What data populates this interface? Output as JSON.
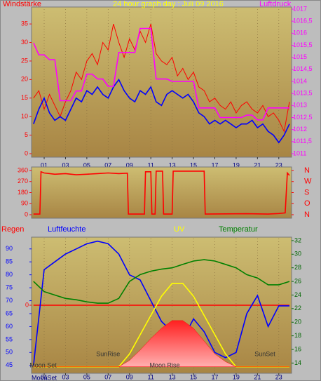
{
  "chart_data": [
    {
      "type": "line",
      "title": "24 hour graph day : Juli 09 2016",
      "title_color": "#ffff00",
      "ylabel": "Windstärke",
      "ycolor": "#ff0000",
      "y2label": "Luftdruck",
      "y2color": "#ff00ff",
      "grid": true,
      "x": [
        0,
        0.5,
        1,
        1.5,
        2,
        2.5,
        3,
        3.5,
        4,
        4.5,
        5,
        5.5,
        6,
        6.5,
        7,
        7.5,
        8,
        8.5,
        9,
        9.5,
        10,
        10.5,
        11,
        11.5,
        12,
        12.5,
        13,
        13.5,
        14,
        14.5,
        15,
        15.5,
        16,
        16.5,
        17,
        17.5,
        18,
        18.5,
        19,
        19.5,
        20,
        20.5,
        21,
        21.5,
        22,
        22.5,
        23,
        23.5,
        24
      ],
      "xlim": [
        0,
        24
      ],
      "xticks": [
        {
          "value": 1,
          "label": "01"
        },
        {
          "value": 3,
          "label": "03"
        },
        {
          "value": 5,
          "label": "05"
        },
        {
          "value": 7,
          "label": "07"
        },
        {
          "value": 9,
          "label": "09"
        },
        {
          "value": 11,
          "label": "11"
        },
        {
          "value": 13,
          "label": "13"
        },
        {
          "value": 15,
          "label": "15"
        },
        {
          "value": 17,
          "label": "17"
        },
        {
          "value": 19,
          "label": "19"
        },
        {
          "value": 21,
          "label": "21"
        },
        {
          "value": 23,
          "label": "23"
        }
      ],
      "ylim": [
        0,
        39
      ],
      "yticks": [
        0,
        5,
        10,
        15,
        20,
        25,
        30,
        35
      ],
      "y2lim": [
        1011,
        1017
      ],
      "y2ticks": [
        1011,
        {
          "value": 1011.5,
          "label": "1011,5"
        },
        1012,
        {
          "value": 1012.5,
          "label": "1012,5"
        },
        1013,
        {
          "value": 1013.5,
          "label": "1013,5"
        },
        1014,
        {
          "value": 1014.5,
          "label": "1014,5"
        },
        1015,
        {
          "value": 1015.5,
          "label": "1015,5"
        },
        1016,
        {
          "value": 1016.5,
          "label": "1016,5"
        },
        1017
      ],
      "series": [
        {
          "color": "#ff0000",
          "axis": "y",
          "values": [
            15,
            17,
            12,
            16,
            13,
            10,
            14,
            17,
            22,
            20,
            25,
            27,
            24,
            30,
            28,
            35,
            30,
            26,
            31,
            28,
            33,
            30,
            35,
            27,
            25,
            24,
            26,
            21,
            23,
            20,
            22,
            18,
            17,
            14,
            15,
            13,
            12,
            14,
            11,
            13,
            14,
            12,
            11,
            13,
            10,
            11,
            9,
            6,
            14
          ]
        },
        {
          "color": "#0000ff",
          "axis": "y",
          "values": [
            8,
            12,
            15,
            11,
            9,
            10,
            9,
            12,
            15,
            14,
            17,
            16,
            18,
            16,
            15,
            18,
            20,
            17,
            15,
            14,
            17,
            16,
            18,
            14,
            13,
            16,
            17,
            16,
            15,
            16,
            14,
            11,
            10,
            8,
            9,
            8,
            9,
            8,
            7,
            8,
            8,
            9,
            7,
            8,
            6,
            5,
            3,
            5,
            8
          ]
        },
        {
          "color": "#ff00ff",
          "axis": "y2",
          "values": [
            1015.6,
            1015.1,
            1015.1,
            1014.9,
            1014.9,
            1013.2,
            1013.2,
            1013.2,
            1013.6,
            1013.6,
            1014.3,
            1014.3,
            1014.1,
            1014.1,
            1013.8,
            1013.8,
            1015.2,
            1015.2,
            1015.2,
            1015.2,
            1016.2,
            1016.2,
            1016.2,
            1014.1,
            1014.1,
            1014.1,
            1014,
            1014,
            1014,
            1014,
            1014,
            1012.9,
            1012.9,
            1012.9,
            1012.9,
            1012.5,
            1012.5,
            1012.5,
            1012.5,
            1012.5,
            1012.6,
            1012.6,
            1012.4,
            1012.4,
            1012.9,
            1012.9,
            1012.9,
            1012.9,
            1012.9
          ]
        }
      ]
    },
    {
      "type": "line",
      "ycolor": "#ff0000",
      "y2color": "#ff0000",
      "x": [
        0,
        0.6,
        0.7,
        1,
        2,
        3,
        4,
        5,
        6,
        7,
        8,
        8.8,
        8.9,
        10.4,
        10.5,
        11,
        11.1,
        11.4,
        11.5,
        12.1,
        12.2,
        13,
        13.1,
        16,
        16.1,
        20,
        22,
        23,
        23.6,
        23.8,
        24
      ],
      "xlim": [
        0,
        24
      ],
      "ylim": [
        0,
        360
      ],
      "yticks": [
        0,
        90,
        180,
        270,
        360
      ],
      "y2lim": [
        0,
        360
      ],
      "y2ticks": [
        {
          "value": 360,
          "label": "N"
        },
        {
          "value": 270,
          "label": "W"
        },
        {
          "value": 180,
          "label": "S"
        },
        {
          "value": 90,
          "label": "O"
        },
        {
          "value": 0,
          "label": "N"
        }
      ],
      "series": [
        {
          "color": "#ff0000",
          "axis": "y",
          "values": [
            5,
            5,
            350,
            340,
            330,
            335,
            325,
            330,
            335,
            340,
            335,
            338,
            5,
            5,
            350,
            350,
            5,
            5,
            355,
            355,
            5,
            5,
            355,
            355,
            5,
            8,
            5,
            10,
            15,
            340,
            320
          ]
        }
      ]
    },
    {
      "type": "line",
      "ycolor": "#0000ff",
      "y2color": "#006600",
      "y3color": "#ff0000",
      "grid": true,
      "x": [
        0,
        1,
        2,
        3,
        4,
        5,
        6,
        7,
        8,
        9,
        10,
        11,
        12,
        13,
        14,
        15,
        16,
        17,
        18,
        19,
        20,
        21,
        22,
        23,
        24
      ],
      "xlim": [
        0,
        24
      ],
      "xticks": [
        {
          "value": 1,
          "label": "01"
        },
        {
          "value": 3,
          "label": "03"
        },
        {
          "value": 5,
          "label": "05"
        },
        {
          "value": 7,
          "label": "07"
        },
        {
          "value": 9,
          "label": "09"
        },
        {
          "value": 11,
          "label": "11"
        },
        {
          "value": 13,
          "label": "13"
        },
        {
          "value": 15,
          "label": "15"
        },
        {
          "value": 17,
          "label": "17"
        },
        {
          "value": 19,
          "label": "19"
        },
        {
          "value": 21,
          "label": "21"
        },
        {
          "value": 23,
          "label": "23"
        }
      ],
      "ylim": [
        42.5,
        94
      ],
      "yticks": [
        45,
        50,
        55,
        60,
        65,
        70,
        75,
        80,
        85,
        90
      ],
      "y2lim": [
        12.7,
        32.3
      ],
      "y2ticks": [
        14,
        16,
        18,
        20,
        22,
        24,
        26,
        28,
        30,
        32
      ],
      "y3lim": [
        -1,
        1
      ],
      "y3ticks": [
        0
      ],
      "y4lim": [
        -0.4,
        10
      ],
      "series": [
        {
          "name": "Regen",
          "color": "#ff0000",
          "axis": "y3",
          "values": [
            0,
            0,
            0,
            0,
            0,
            0,
            0,
            0,
            0,
            0,
            0,
            0,
            0,
            0,
            0,
            0,
            0,
            0,
            0,
            0,
            0,
            0,
            0,
            0,
            0
          ]
        },
        {
          "name": "Luftfeuchte",
          "color": "#0000ff",
          "axis": "y",
          "values": [
            45,
            82,
            85,
            88,
            90,
            92,
            93,
            92,
            88,
            80,
            78,
            70,
            62,
            58,
            55,
            63,
            58,
            50,
            48,
            50,
            65,
            72,
            60,
            68,
            68
          ]
        },
        {
          "name": "UV",
          "color": "#ffff00",
          "axis": "y4",
          "values": [
            0,
            0,
            0,
            0,
            0,
            0,
            0,
            0,
            0,
            1,
            2.5,
            4,
            5.5,
            6.5,
            6.5,
            5.5,
            4,
            2.5,
            1,
            0,
            0,
            0,
            0,
            0,
            0
          ]
        },
        {
          "name": "Temperatur",
          "color": "#008000",
          "axis": "y2",
          "values": [
            26,
            24.5,
            24,
            23.5,
            23.3,
            23,
            22.8,
            22.8,
            23.5,
            26,
            27,
            27.5,
            27.8,
            28,
            28.5,
            29,
            29.2,
            29,
            28.5,
            28,
            27,
            26.5,
            25.5,
            25.5,
            26
          ]
        },
        {
          "color": "#ff0000",
          "axis": "y4",
          "kind": "area",
          "values": [
            0,
            0,
            0,
            0,
            0,
            0,
            0,
            0,
            0,
            0.5,
            1.3,
            2.2,
            3,
            3.6,
            3.6,
            3,
            2,
            1,
            0.4,
            0,
            0,
            0,
            0,
            0,
            0
          ]
        }
      ],
      "annotations": [
        {
          "text": "Moon Set",
          "x": 0.9
        },
        {
          "text": "SunRise",
          "x": 7
        },
        {
          "text": "Moon Rise",
          "x": 12.3
        },
        {
          "text": "SunSet",
          "x": 21.7
        }
      ],
      "footnote": "MoonSet"
    }
  ]
}
